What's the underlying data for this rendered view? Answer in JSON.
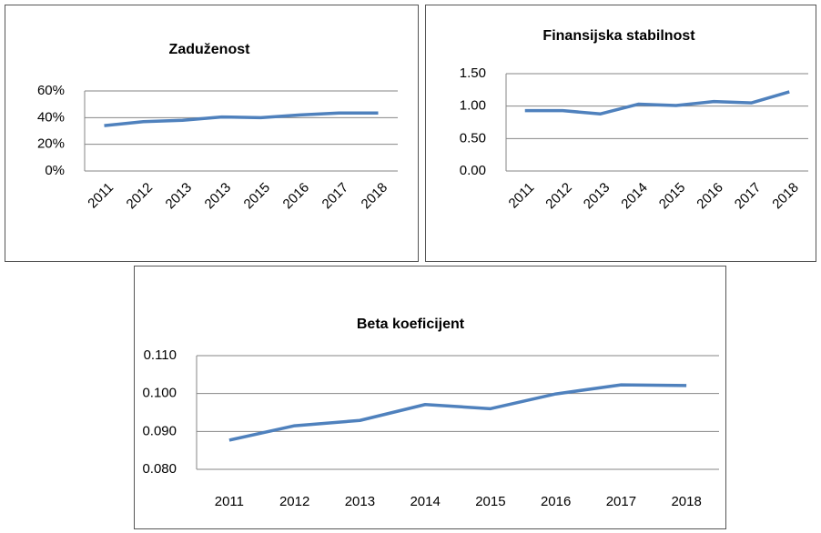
{
  "chart_data": [
    {
      "type": "line",
      "title": "Zaduženost",
      "categories": [
        "2011",
        "2012",
        "2013",
        "2013",
        "2015",
        "2016",
        "2017",
        "2018"
      ],
      "series": [
        {
          "name": "Zaduženost",
          "color": "#4f81bd",
          "values": [
            34,
            37,
            38,
            40.5,
            40,
            42,
            43.5,
            43.5
          ]
        }
      ],
      "ylim": [
        0,
        60
      ],
      "yticks": [
        {
          "value": 0,
          "label": "0%"
        },
        {
          "value": 20,
          "label": "20%"
        },
        {
          "value": 40,
          "label": "40%"
        },
        {
          "value": 60,
          "label": "60%"
        }
      ],
      "grid": true,
      "x_label_rotation": -45
    },
    {
      "type": "line",
      "title": "Finansijska stabilnost",
      "categories": [
        "2011",
        "2012",
        "2013",
        "2014",
        "2015",
        "2016",
        "2017",
        "2018"
      ],
      "series": [
        {
          "name": "Finansijska stabilnost",
          "color": "#4f81bd",
          "values": [
            0.93,
            0.93,
            0.88,
            1.03,
            1.01,
            1.07,
            1.05,
            1.22
          ]
        }
      ],
      "ylim": [
        0,
        1.5
      ],
      "yticks": [
        {
          "value": 0,
          "label": "0.00"
        },
        {
          "value": 0.5,
          "label": "0.50"
        },
        {
          "value": 1,
          "label": "1.00"
        },
        {
          "value": 1.5,
          "label": "1.50"
        }
      ],
      "grid": true,
      "x_label_rotation": -45
    },
    {
      "type": "line",
      "title": "Beta koeficijent",
      "categories": [
        "2011",
        "2012",
        "2013",
        "2014",
        "2015",
        "2016",
        "2017",
        "2018"
      ],
      "series": [
        {
          "name": "Beta koeficijent",
          "color": "#4f81bd",
          "values": [
            0.0877,
            0.0915,
            0.0929,
            0.0971,
            0.096,
            0.0999,
            0.1023,
            0.1021
          ]
        }
      ],
      "ylim": [
        0.08,
        0.11
      ],
      "yticks": [
        {
          "value": 0.08,
          "label": "0.080"
        },
        {
          "value": 0.09,
          "label": "0.090"
        },
        {
          "value": 0.1,
          "label": "0.100"
        },
        {
          "value": 0.11,
          "label": "0.110"
        }
      ],
      "grid": true,
      "x_label_rotation": 0
    }
  ]
}
